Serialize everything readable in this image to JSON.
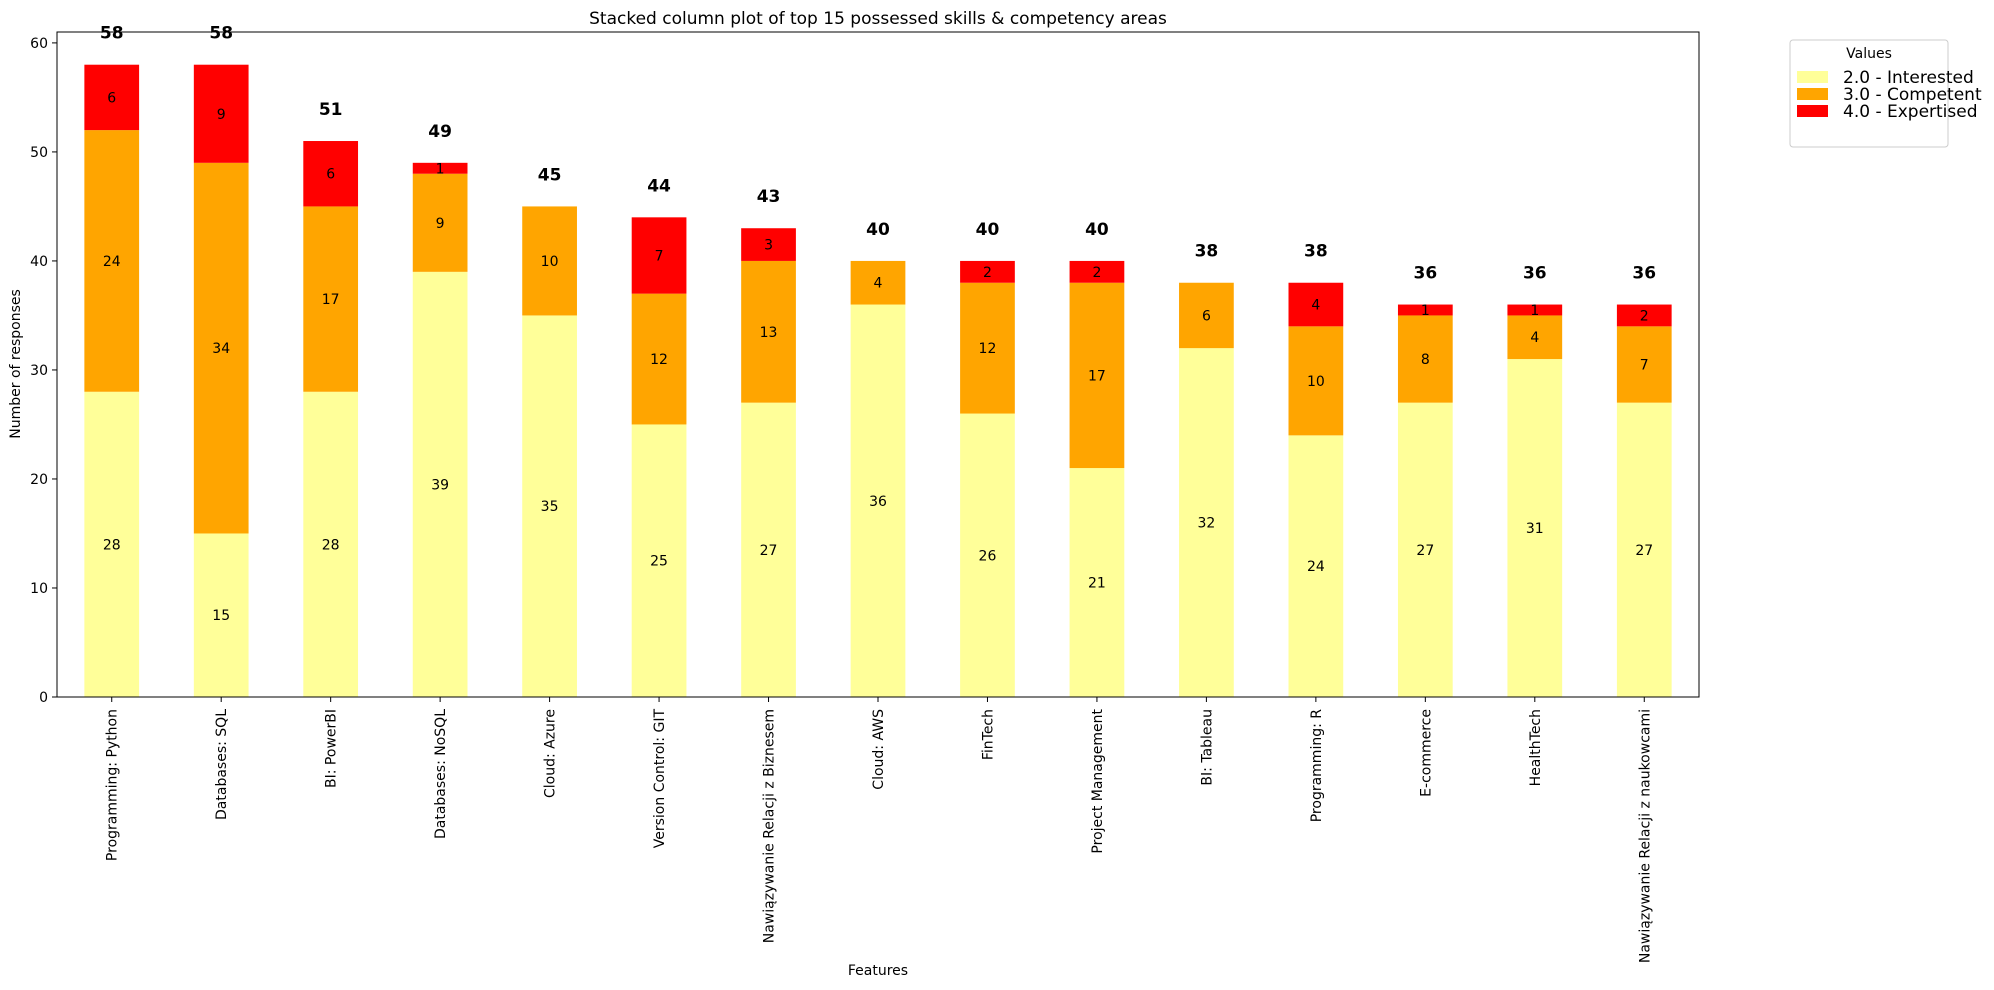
{
  "chart_data": {
    "type": "bar",
    "stacked": true,
    "title": "Stacked column plot of top 15 possessed skills & competency areas",
    "xlabel": "Features",
    "ylabel": "Number of responses",
    "ylim": [
      0,
      61
    ],
    "yticks": [
      0,
      10,
      20,
      30,
      40,
      50,
      60
    ],
    "grid": false,
    "legend": {
      "title": "Values",
      "placement": "outside-top-right"
    },
    "categories": [
      "Programming: Python",
      "Databases: SQL",
      "BI: PowerBI",
      "Databases: NoSQL",
      "Cloud: Azure",
      "Version Control: GIT",
      "Nawiązywanie Relacji z Biznesem",
      "Cloud: AWS",
      "FinTech",
      "Project Management",
      "BI: Tableau",
      "Programming: R",
      "E-commerce",
      "HealthTech",
      "Nawiązywanie Relacji z naukowcami"
    ],
    "series": [
      {
        "name": "2.0 - Interested",
        "color": "#ffff99",
        "values": [
          28,
          15,
          28,
          39,
          35,
          25,
          27,
          36,
          26,
          21,
          32,
          24,
          27,
          31,
          27
        ]
      },
      {
        "name": "3.0 - Competent",
        "color": "#ffa500",
        "values": [
          24,
          34,
          17,
          9,
          10,
          12,
          13,
          4,
          12,
          17,
          6,
          10,
          8,
          4,
          7
        ]
      },
      {
        "name": "4.0 - Expertised",
        "color": "#ff0000",
        "values": [
          6,
          9,
          6,
          1,
          0,
          7,
          3,
          0,
          2,
          2,
          0,
          4,
          1,
          1,
          2
        ]
      }
    ],
    "totals": [
      58,
      58,
      51,
      49,
      45,
      44,
      43,
      40,
      40,
      40,
      38,
      38,
      36,
      36,
      36
    ]
  }
}
